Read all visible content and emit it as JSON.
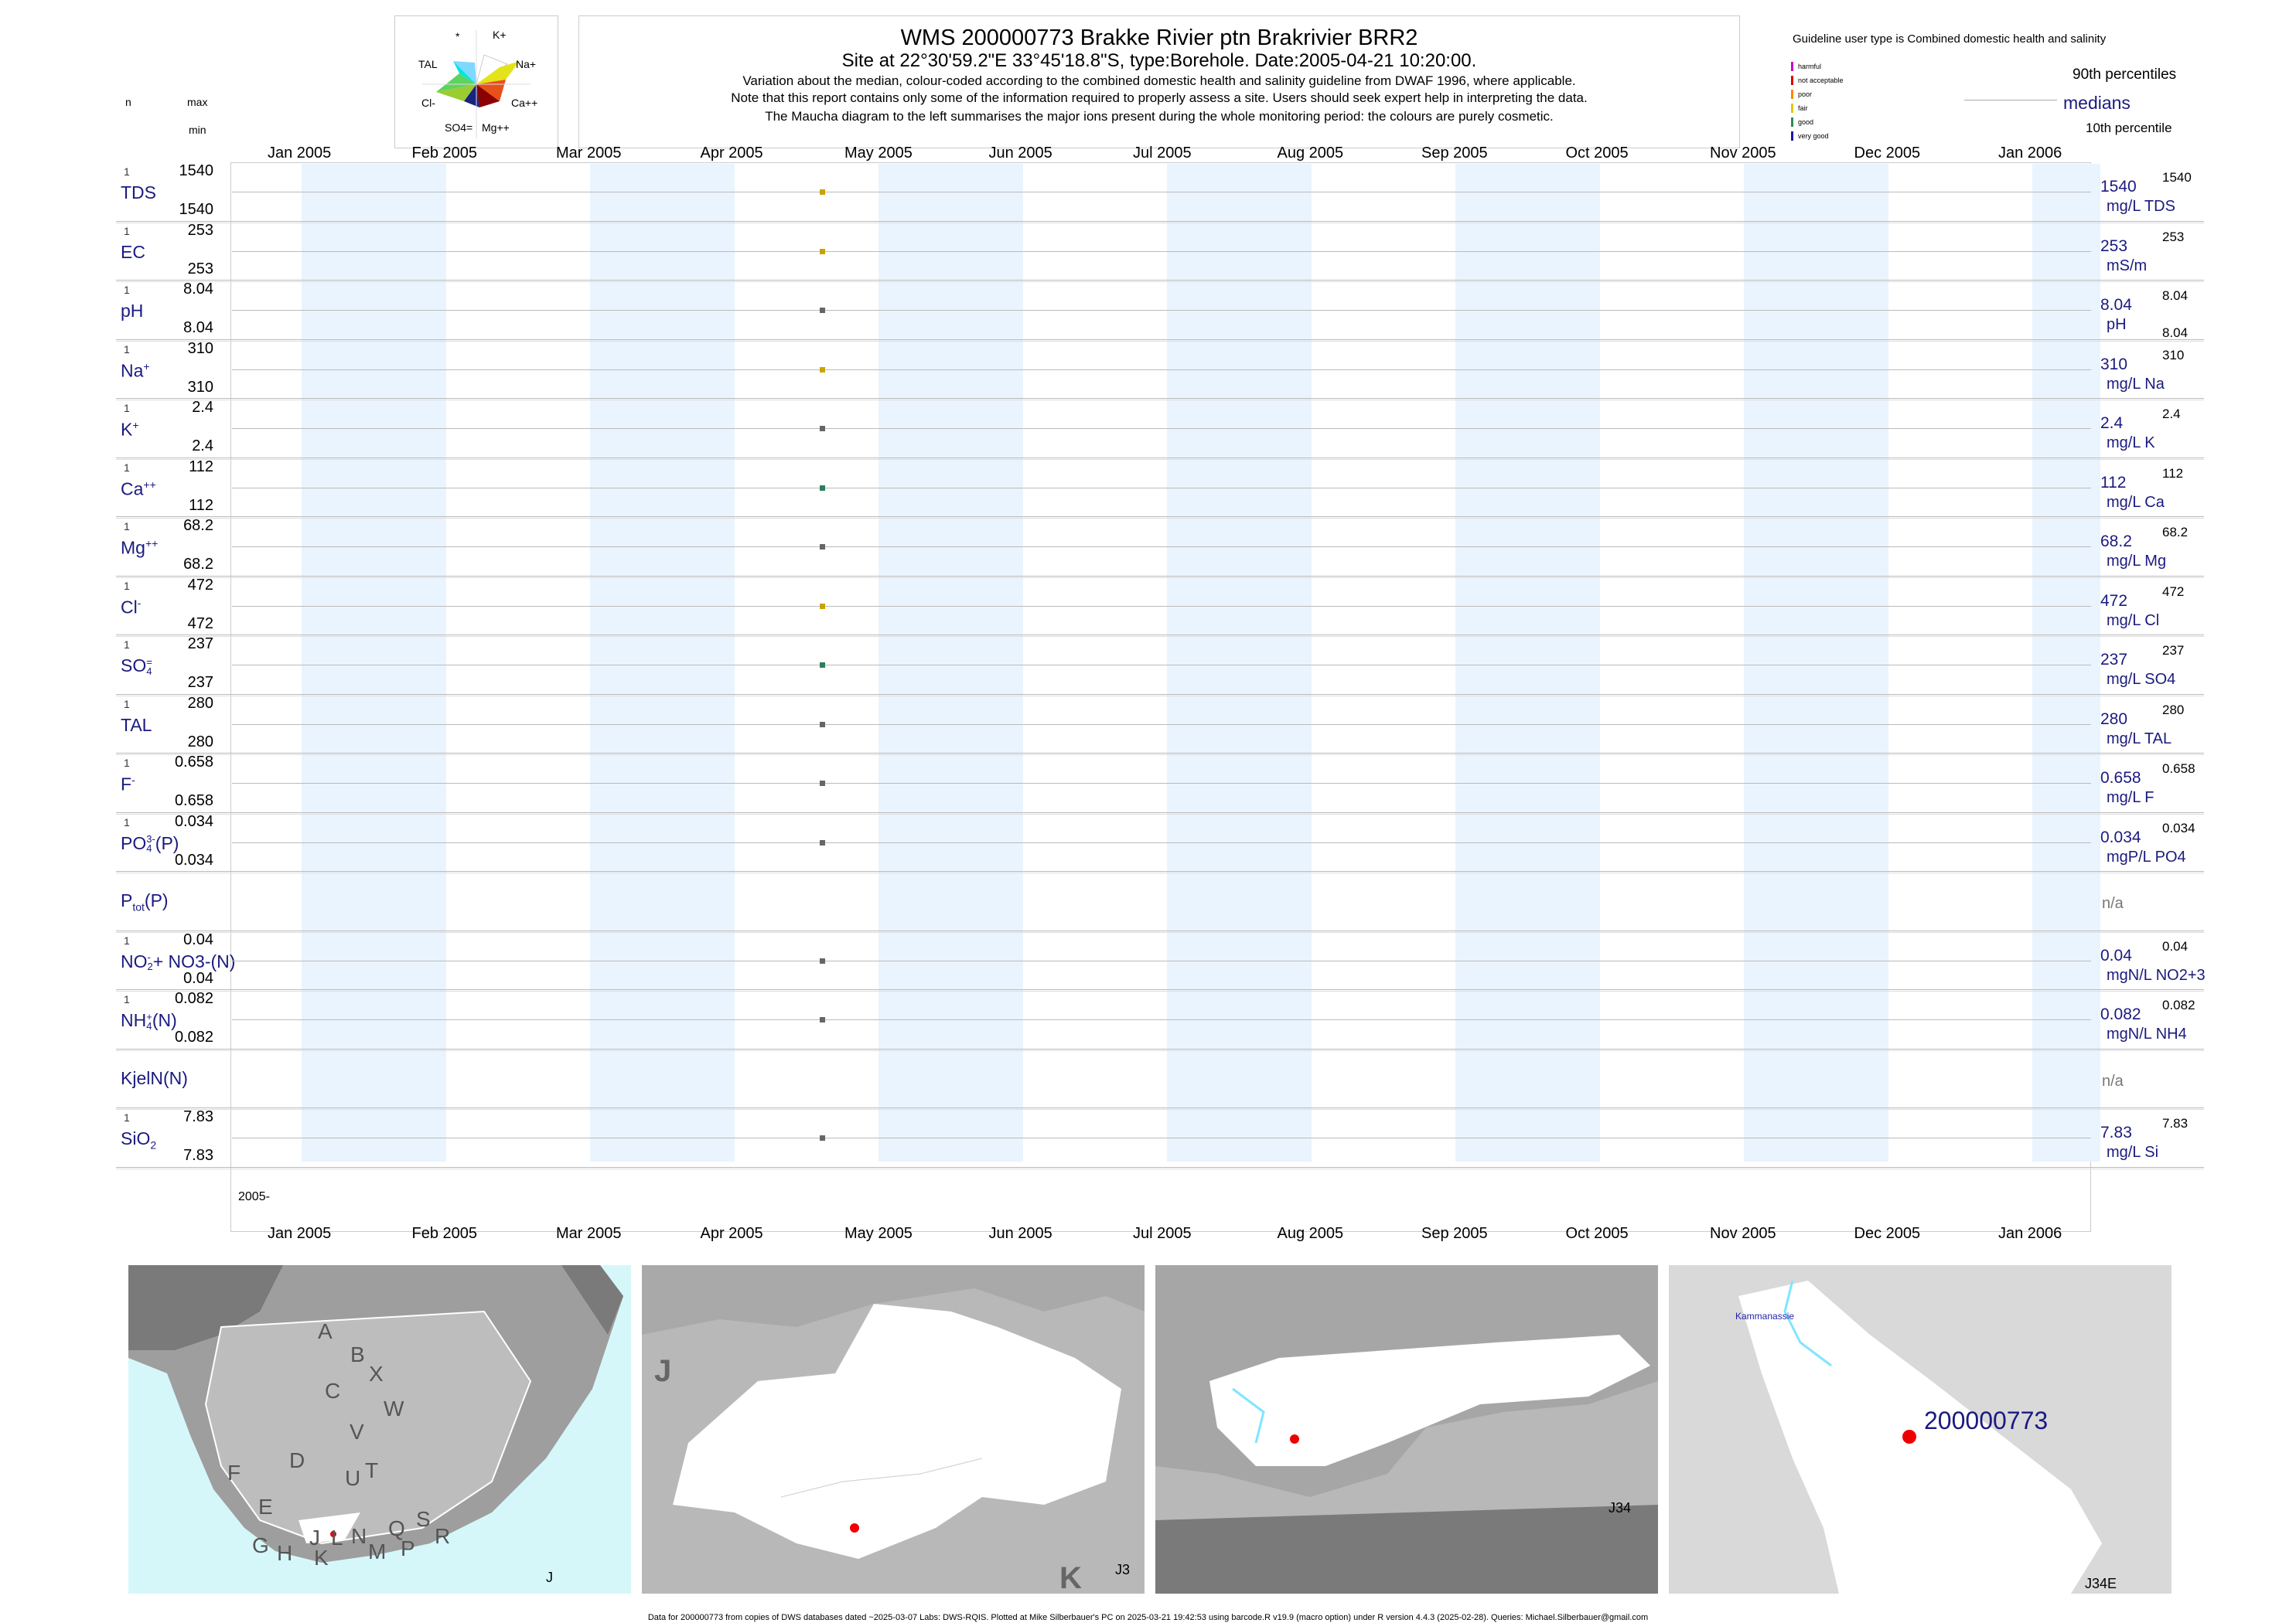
{
  "title": {
    "main": "WMS 200000773  Brakke Rivier ptn Brakrivier BRR2",
    "site": "Site at 22°30'59.2\"E 33°45'18.8\"S, type:Borehole. Date:2005-04-21 10:20:00.",
    "note1": "Variation about the median,  colour-coded according to the combined domestic health and salinity guideline from DWAF 1996, where applicable.",
    "note2": "Note that this report contains only some of the information required to properly assess a site. Users should seek expert help in interpreting the data.",
    "note3": "The Maucha diagram to the left summarises the major ions present during the whole monitoring period: the colours are purely cosmetic."
  },
  "maucha": {
    "k": "K+",
    "star": "*",
    "tal": "TAL",
    "na": "Na+",
    "cl": "Cl-",
    "ca": "Ca++",
    "so4": "SO4=",
    "mg": "Mg++"
  },
  "header": {
    "n": "n",
    "max": "max",
    "min": "min"
  },
  "guideline": {
    "title": "Guideline user type is Combined domestic health and salinity",
    "levels": [
      {
        "label": "harmful",
        "color": "#cc00cc"
      },
      {
        "label": "not acceptable",
        "color": "#dd0000"
      },
      {
        "label": "poor",
        "color": "#ff8800"
      },
      {
        "label": "fair",
        "color": "#ddcc00"
      },
      {
        "label": "good",
        "color": "#2e8b57"
      },
      {
        "label": "very good",
        "color": "#1a1aa0"
      }
    ],
    "p90": "90th percentiles",
    "median": "medians",
    "p10": "10th percentile"
  },
  "months": [
    "Jan 2005",
    "Feb 2005",
    "Mar 2005",
    "Apr 2005",
    "May 2005",
    "Jun 2005",
    "Jul 2005",
    "Aug 2005",
    "Sep 2005",
    "Oct 2005",
    "Nov 2005",
    "Dec 2005",
    "Jan 2006"
  ],
  "year_label": "2005-",
  "chart_data": {
    "type": "scatter",
    "sample_date": "2005-04-21",
    "x_range": [
      "2005-01-01",
      "2006-01-01"
    ],
    "variables": [
      {
        "id": "tds",
        "label": "TDS",
        "n": "1",
        "max": "1540",
        "min": "1540",
        "value": 1540,
        "median": "1540",
        "unit": "mg/L TDS",
        "p90": "1540",
        "p10": "",
        "color": "#c8a400"
      },
      {
        "id": "ec",
        "label": "EC",
        "n": "1",
        "max": "253",
        "min": "253",
        "value": 253,
        "median": "253",
        "unit": "mS/m",
        "p90": "253",
        "p10": "",
        "color": "#c8a400"
      },
      {
        "id": "ph",
        "label": "pH",
        "n": "1",
        "max": "8.04",
        "min": "8.04",
        "value": 8.04,
        "median": "8.04",
        "unit": "pH",
        "p90": "8.04",
        "p10": "8.04",
        "color": "#666666"
      },
      {
        "id": "na",
        "label": "Na",
        "sup": "+",
        "n": "1",
        "max": "310",
        "min": "310",
        "value": 310,
        "median": "310",
        "unit": "mg/L Na",
        "p90": "310",
        "p10": "",
        "color": "#c8a400"
      },
      {
        "id": "k",
        "label": "K",
        "sup": "+",
        "n": "1",
        "max": "2.4",
        "min": "2.4",
        "value": 2.4,
        "median": "2.4",
        "unit": "mg/L K",
        "p90": "2.4",
        "p10": "",
        "color": "#666666"
      },
      {
        "id": "ca",
        "label": "Ca",
        "sup": "++",
        "n": "1",
        "max": "112",
        "min": "112",
        "value": 112,
        "median": "112",
        "unit": "mg/L Ca",
        "p90": "112",
        "p10": "",
        "color": "#2e7d5b"
      },
      {
        "id": "mg",
        "label": "Mg",
        "sup": "++",
        "n": "1",
        "max": "68.2",
        "min": "68.2",
        "value": 68.2,
        "median": "68.2",
        "unit": "mg/L Mg",
        "p90": "68.2",
        "p10": "",
        "color": "#666666"
      },
      {
        "id": "cl",
        "label": "Cl",
        "sup": "-",
        "n": "1",
        "max": "472",
        "min": "472",
        "value": 472,
        "median": "472",
        "unit": "mg/L Cl",
        "p90": "472",
        "p10": "",
        "color": "#c8a400"
      },
      {
        "id": "so4",
        "label": "SO",
        "sub": "4",
        "sup": "=",
        "n": "1",
        "max": "237",
        "min": "237",
        "value": 237,
        "median": "237",
        "unit": "mg/L SO4",
        "p90": "237",
        "p10": "",
        "color": "#2e7d5b"
      },
      {
        "id": "tal",
        "label": "TAL",
        "n": "1",
        "max": "280",
        "min": "280",
        "value": 280,
        "median": "280",
        "unit": "mg/L TAL",
        "p90": "280",
        "p10": "",
        "color": "#666666"
      },
      {
        "id": "f",
        "label": "F",
        "sup": "-",
        "n": "1",
        "max": "0.658",
        "min": "0.658",
        "value": 0.658,
        "median": "0.658",
        "unit": "mg/L F",
        "p90": "0.658",
        "p10": "",
        "color": "#666666"
      },
      {
        "id": "po4",
        "label": "PO",
        "sub": "4",
        "sup": "3-",
        "suffix": "(P)",
        "n": "1",
        "max": "0.034",
        "min": "0.034",
        "value": 0.034,
        "median": "0.034",
        "unit": "mgP/L PO4",
        "p90": "0.034",
        "p10": "",
        "color": "#666666"
      },
      {
        "id": "ptot",
        "label": "P",
        "sub": "tot",
        "suffix": "(P)",
        "n": "",
        "max": "",
        "min": "",
        "value": null,
        "median": "n/a",
        "unit": "",
        "p90": "",
        "p10": "",
        "color": "#666666"
      },
      {
        "id": "no",
        "label": "NO",
        "sub": "2",
        "sup": "-",
        "suffix": "+ NO3-(N)",
        "n": "1",
        "max": "0.04",
        "min": "0.04",
        "value": 0.04,
        "median": "0.04",
        "unit": "mgN/L NO2+3",
        "p90": "0.04",
        "p10": "",
        "color": "#666666"
      },
      {
        "id": "nh4",
        "label": "NH",
        "sub": "4",
        "sup": "+",
        "suffix": "(N)",
        "n": "1",
        "max": "0.082",
        "min": "0.082",
        "value": 0.082,
        "median": "0.082",
        "unit": "mgN/L NH4",
        "p90": "0.082",
        "p10": "",
        "color": "#666666"
      },
      {
        "id": "kjel",
        "label": "KjelN(N)",
        "n": "",
        "max": "",
        "min": "",
        "value": null,
        "median": "n/a",
        "unit": "",
        "p90": "",
        "p10": "",
        "color": "#666666"
      },
      {
        "id": "sio2",
        "label": "SiO",
        "sub": "2",
        "n": "1",
        "max": "7.83",
        "min": "7.83",
        "value": 7.83,
        "median": "7.83",
        "unit": "mg/L Si",
        "p90": "7.83",
        "p10": "",
        "color": "#666666"
      }
    ]
  },
  "maps": [
    {
      "label": "J",
      "regions": [
        "A",
        "B",
        "X",
        "W",
        "C",
        "V",
        "D",
        "U",
        "T",
        "F",
        "E",
        "G",
        "H",
        "J",
        "K",
        "L",
        "N",
        "Q",
        "S",
        "M",
        "P",
        "R"
      ]
    },
    {
      "label": "J3",
      "corner_big": "J",
      "corner_k": "K"
    },
    {
      "label": "J34"
    },
    {
      "label": "J34E",
      "site": "200000773",
      "place": "Kammanassie"
    }
  ],
  "footer": "Data for 200000773 from copies of DWS databases dated ~2025-03-07 Labs: DWS-RQIS. Plotted at Mike Silberbauer's PC on 2025-03-21 19:42:53 using barcode.R v19.9 (macro option) under R version 4.4.3 (2025-02-28). Queries: Michael.Silberbauer@gmail.com"
}
